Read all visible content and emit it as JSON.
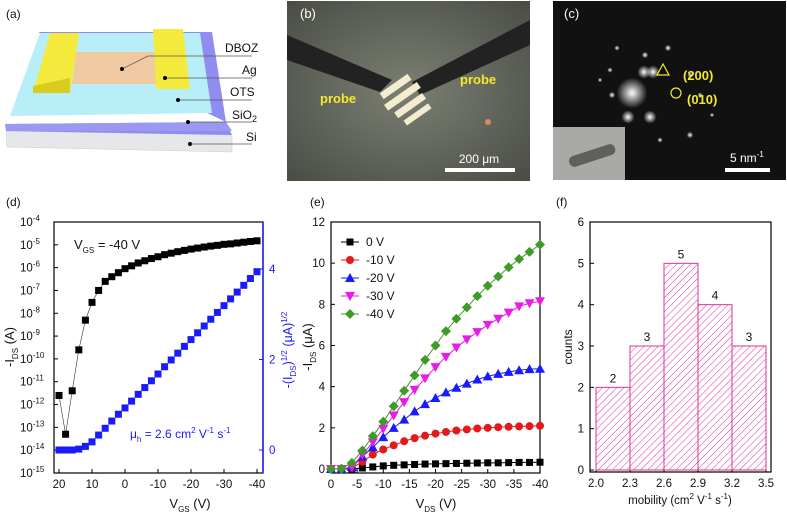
{
  "panels": {
    "a": "(a)",
    "b": "(b)",
    "c": "(c)",
    "d": "(d)",
    "e": "(e)",
    "f": "(f)"
  },
  "schematic": {
    "layers": [
      "DBOZ",
      "Ag",
      "OTS",
      "SiO",
      "Si"
    ],
    "sio2_sub": "2"
  },
  "micrograph": {
    "probe_left": "probe",
    "probe_right": "probe",
    "scale": "200 μm"
  },
  "diffraction": {
    "spot1": "(200)",
    "spot2": "(010)",
    "scale": "5 nm",
    "scale_sup": "-1"
  },
  "colors": {
    "blue": "#1a1aff",
    "black": "#000000",
    "red": "#e41a1a",
    "magenta": "#e81ce8",
    "green": "#3f9a2a",
    "hist": "#e0309a"
  },
  "chart_data": [
    {
      "type": "scatter",
      "title": "",
      "annotation": [
        "V",
        "GS",
        " = -40 V"
      ],
      "mobility": [
        "μ",
        "h",
        " = 2.6 cm",
        "2",
        " V",
        "-1",
        " s",
        "-1"
      ],
      "xlabel": [
        "V",
        "GS",
        " (V)"
      ],
      "ylabel": [
        "-I",
        "DS",
        " (A)"
      ],
      "y2label": [
        "-(I",
        "DS",
        ")",
        "1/2",
        " (μA)",
        "1/2"
      ],
      "xlim": [
        22,
        -42
      ],
      "xticks": [
        "20",
        "10",
        "0",
        "-10",
        "-20",
        "-30",
        "-40"
      ],
      "xtickvals": [
        20,
        10,
        0,
        -10,
        -20,
        -30,
        -40
      ],
      "ylim_log": [
        -15,
        -4
      ],
      "yticks": [
        "-15",
        "-14",
        "-13",
        "-12",
        "-11",
        "-10",
        "-9",
        "-8",
        "-7",
        "-6",
        "-5",
        "-4"
      ],
      "y2lim": [
        -0.5,
        5.25
      ],
      "y2ticks": [
        "0",
        "2",
        "4"
      ],
      "y2tickvals": [
        0,
        2,
        4
      ],
      "x": [
        20,
        18,
        16,
        14,
        12,
        10,
        8,
        6,
        4,
        2,
        0,
        -2,
        -4,
        -6,
        -8,
        -10,
        -12,
        -14,
        -16,
        -18,
        -20,
        -22,
        -24,
        -26,
        -28,
        -30,
        -32,
        -34,
        -36,
        -38,
        -40
      ],
      "series": [
        {
          "name": "-IDS",
          "axis": "left",
          "values": [
            2.5e-12,
            5e-14,
            4e-12,
            2.5e-10,
            5e-09,
            3e-08,
            1e-07,
            2.5e-07,
            4e-07,
            6e-07,
            9e-07,
            1.2e-06,
            1.6e-06,
            2e-06,
            2.5e-06,
            3e-06,
            3.7e-06,
            4.3e-06,
            5e-06,
            5.7e-06,
            6.5e-06,
            7.2e-06,
            8e-06,
            8.8e-06,
            9.5e-06,
            1.05e-05,
            1.1e-05,
            1.2e-05,
            1.3e-05,
            1.4e-05,
            1.5e-05
          ]
        },
        {
          "name": "sqrt(-IDS)",
          "axis": "right",
          "values": [
            0,
            0,
            0,
            0.02,
            0.08,
            0.18,
            0.33,
            0.48,
            0.64,
            0.79,
            0.93,
            1.08,
            1.23,
            1.38,
            1.53,
            1.68,
            1.84,
            1.99,
            2.14,
            2.29,
            2.44,
            2.59,
            2.74,
            2.89,
            3.04,
            3.19,
            3.34,
            3.49,
            3.64,
            3.79,
            3.94
          ]
        }
      ]
    },
    {
      "type": "line",
      "xlabel": [
        "V",
        "DS",
        " (V)"
      ],
      "ylabel": [
        "-I",
        "DS",
        " (μA)"
      ],
      "xlim": [
        0,
        -40
      ],
      "ylim": [
        -0.3,
        12
      ],
      "xticks": [
        "0",
        "-5",
        "-10",
        "-15",
        "-20",
        "-25",
        "-30",
        "-35",
        "-40"
      ],
      "xtickvals": [
        0,
        -5,
        -10,
        -15,
        -20,
        -25,
        -30,
        -35,
        -40
      ],
      "yticks": [
        "0",
        "2",
        "4",
        "6",
        "8",
        "10",
        "12"
      ],
      "ytickvals": [
        0,
        2,
        4,
        6,
        8,
        10,
        12
      ],
      "x": [
        0,
        -2,
        -4,
        -6,
        -8,
        -10,
        -12,
        -14,
        -16,
        -18,
        -20,
        -22,
        -24,
        -26,
        -28,
        -30,
        -32,
        -34,
        -36,
        -38,
        -40
      ],
      "legend_position": "top-left",
      "series": [
        {
          "name": "0 V",
          "marker": "square",
          "color": "#000000",
          "values": [
            0,
            0,
            0,
            0.05,
            0.1,
            0.15,
            0.18,
            0.2,
            0.22,
            0.24,
            0.25,
            0.26,
            0.27,
            0.28,
            0.29,
            0.3,
            0.3,
            0.31,
            0.32,
            0.32,
            0.33
          ]
        },
        {
          "name": "-10 V",
          "marker": "circle",
          "color": "#e41a1a",
          "values": [
            0,
            0,
            0.05,
            0.35,
            0.7,
            0.95,
            1.15,
            1.35,
            1.5,
            1.62,
            1.72,
            1.8,
            1.87,
            1.92,
            1.97,
            2.0,
            2.03,
            2.05,
            2.07,
            2.08,
            2.1
          ]
        },
        {
          "name": "-20 V",
          "marker": "triangle-up",
          "color": "#1a1aff",
          "values": [
            0,
            0,
            0.1,
            0.6,
            1.05,
            1.55,
            2.0,
            2.4,
            2.8,
            3.15,
            3.45,
            3.72,
            3.95,
            4.15,
            4.35,
            4.5,
            4.62,
            4.72,
            4.8,
            4.85,
            4.87
          ]
        },
        {
          "name": "-30 V",
          "marker": "triangle-down",
          "color": "#e81ce8",
          "values": [
            0,
            0,
            0.1,
            0.7,
            1.3,
            1.95,
            2.6,
            3.25,
            3.85,
            4.4,
            4.95,
            5.45,
            5.9,
            6.3,
            6.65,
            7.0,
            7.3,
            7.6,
            7.9,
            8.05,
            8.15
          ]
        },
        {
          "name": "-40 V",
          "marker": "diamond",
          "color": "#3f9a2a",
          "values": [
            0,
            0.02,
            0.3,
            0.9,
            1.6,
            2.3,
            3.05,
            3.8,
            4.55,
            5.3,
            6.0,
            6.7,
            7.3,
            7.85,
            8.4,
            8.9,
            9.35,
            9.8,
            10.2,
            10.55,
            10.9
          ]
        }
      ]
    },
    {
      "type": "bar",
      "xlabel": [
        "mobility (cm",
        "2",
        " V",
        "-1",
        " s",
        "-1",
        ")"
      ],
      "ylabel": [
        "counts"
      ],
      "xlim": [
        1.9,
        3.6
      ],
      "ylim": [
        0,
        6
      ],
      "xticks": [
        "2.0",
        "2.3",
        "2.6",
        "2.9",
        "3.2",
        "3.5"
      ],
      "xtickvals": [
        2.0,
        2.3,
        2.6,
        2.9,
        3.2,
        3.5
      ],
      "yticks": [
        "0",
        "1",
        "2",
        "3",
        "4",
        "5",
        "6"
      ],
      "ytickvals": [
        0,
        1,
        2,
        3,
        4,
        5,
        6
      ],
      "bins": [
        [
          2.0,
          2.3
        ],
        [
          2.3,
          2.6
        ],
        [
          2.6,
          2.9
        ],
        [
          2.9,
          3.2
        ],
        [
          3.2,
          3.5
        ]
      ],
      "values": [
        2,
        3,
        5,
        4,
        3
      ],
      "labels": [
        "2",
        "3",
        "5",
        "4",
        "3"
      ]
    }
  ]
}
